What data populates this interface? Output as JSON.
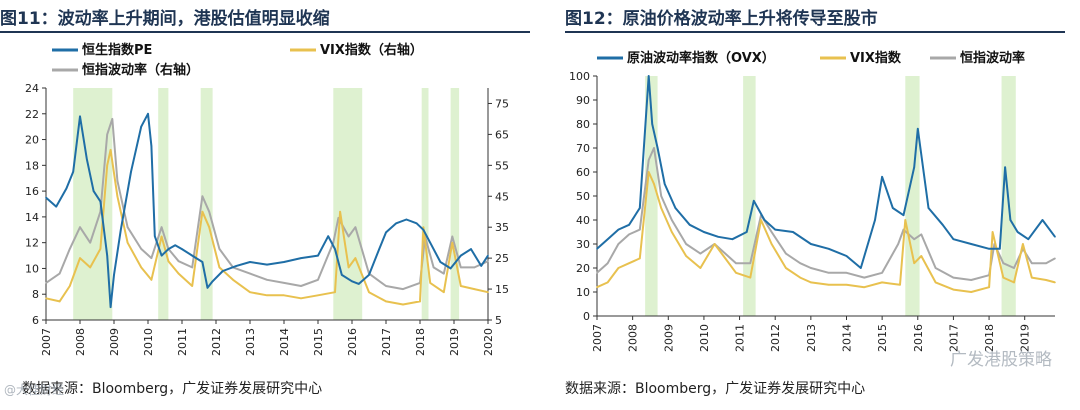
{
  "left": {
    "title": "图11：波动率上升期间，港股估值明显收缩",
    "source": "数据来源：Bloomberg，广发证券发展研究中心",
    "chart_data": {
      "type": "line",
      "title": "图11：波动率上升期间，港股估值明显收缩",
      "x_tick_labels": [
        "2007",
        "2008",
        "2009",
        "2010",
        "2011",
        "2012",
        "2013",
        "2014",
        "2015",
        "2016",
        "2017",
        "2018",
        "2019",
        "2020"
      ],
      "x_range": [
        2007,
        2020
      ],
      "y_left": {
        "range": [
          6,
          24
        ],
        "ticks": [
          6,
          8,
          10,
          12,
          14,
          16,
          18,
          20,
          22,
          24
        ],
        "label": "恒生指数PE"
      },
      "y_right": {
        "range": [
          5,
          80
        ],
        "ticks": [
          5,
          15,
          25,
          35,
          45,
          55,
          65,
          75
        ],
        "label": "VIX / 恒指波动率"
      },
      "shaded_periods": [
        [
          2007.8,
          2008.95
        ],
        [
          2010.3,
          2010.6
        ],
        [
          2011.55,
          2011.9
        ],
        [
          2015.45,
          2016.3
        ],
        [
          2018.05,
          2018.25
        ],
        [
          2018.9,
          2019.15
        ]
      ],
      "series": [
        {
          "name": "恒生指数PE",
          "axis": "left",
          "color": "#1f6ea6",
          "x": [
            2007.0,
            2007.3,
            2007.6,
            2007.8,
            2008.0,
            2008.2,
            2008.4,
            2008.6,
            2008.8,
            2008.9,
            2009.0,
            2009.2,
            2009.5,
            2009.8,
            2010.0,
            2010.1,
            2010.2,
            2010.4,
            2010.6,
            2010.8,
            2011.0,
            2011.3,
            2011.6,
            2011.75,
            2011.9,
            2012.2,
            2012.6,
            2013.0,
            2013.5,
            2014.0,
            2014.5,
            2015.0,
            2015.3,
            2015.5,
            2015.7,
            2016.0,
            2016.2,
            2016.5,
            2016.8,
            2017.0,
            2017.3,
            2017.6,
            2017.9,
            2018.1,
            2018.3,
            2018.6,
            2018.9,
            2019.2,
            2019.5,
            2019.8,
            2020.0
          ],
          "y": [
            15.5,
            14.8,
            16.2,
            17.5,
            21.8,
            18.5,
            16.0,
            15.2,
            11.0,
            7.0,
            9.5,
            13.0,
            17.5,
            21.0,
            22.0,
            19.5,
            12.5,
            11.0,
            11.5,
            11.8,
            11.5,
            11.0,
            10.5,
            8.5,
            9.0,
            9.8,
            10.2,
            10.5,
            10.3,
            10.5,
            10.8,
            11.0,
            12.5,
            11.5,
            9.5,
            9.0,
            8.8,
            9.5,
            11.5,
            12.8,
            13.5,
            13.8,
            13.5,
            13.0,
            12.0,
            10.5,
            10.0,
            11.0,
            11.5,
            10.2,
            11.0
          ]
        },
        {
          "name": "VIX指数（右轴）",
          "axis": "right",
          "color": "#e8c14f",
          "x": [
            2007.0,
            2007.4,
            2007.7,
            2008.0,
            2008.3,
            2008.6,
            2008.8,
            2008.9,
            2009.1,
            2009.4,
            2009.8,
            2010.1,
            2010.4,
            2010.6,
            2010.9,
            2011.3,
            2011.6,
            2011.8,
            2012.1,
            2012.5,
            2013.0,
            2013.5,
            2014.0,
            2014.5,
            2015.0,
            2015.5,
            2015.65,
            2015.9,
            2016.1,
            2016.5,
            2017.0,
            2017.5,
            2018.0,
            2018.1,
            2018.3,
            2018.7,
            2018.95,
            2019.2,
            2019.6,
            2020.0
          ],
          "y": [
            12,
            11,
            16,
            25,
            22,
            28,
            55,
            60,
            45,
            30,
            22,
            18,
            32,
            24,
            20,
            16,
            40,
            35,
            22,
            18,
            14,
            13,
            13,
            12,
            13,
            14,
            40,
            22,
            25,
            14,
            11,
            10,
            11,
            35,
            17,
            14,
            30,
            16,
            15,
            14
          ]
        },
        {
          "name": "恒指波动率（右轴）",
          "axis": "right",
          "color": "#a8a8a8",
          "x": [
            2007.0,
            2007.4,
            2007.7,
            2008.0,
            2008.3,
            2008.6,
            2008.8,
            2008.95,
            2009.1,
            2009.4,
            2009.8,
            2010.1,
            2010.4,
            2010.6,
            2010.9,
            2011.3,
            2011.6,
            2011.8,
            2012.1,
            2012.5,
            2013.0,
            2013.5,
            2014.0,
            2014.5,
            2015.0,
            2015.45,
            2015.6,
            2015.9,
            2016.1,
            2016.5,
            2017.0,
            2017.5,
            2018.0,
            2018.15,
            2018.4,
            2018.7,
            2018.95,
            2019.2,
            2019.6,
            2020.0
          ],
          "y": [
            17,
            20,
            28,
            35,
            30,
            40,
            65,
            70,
            50,
            35,
            28,
            25,
            35,
            28,
            24,
            22,
            45,
            40,
            28,
            22,
            20,
            18,
            17,
            16,
            18,
            30,
            38,
            32,
            35,
            20,
            16,
            15,
            17,
            32,
            22,
            20,
            32,
            22,
            22,
            24
          ]
        }
      ]
    },
    "legend": [
      "恒生指数PE",
      "VIX指数（右轴）",
      "恒指波动率（右轴）"
    ]
  },
  "right": {
    "title": "图12：原油价格波动率上升将传导至股市",
    "source": "数据来源：Bloomberg，广发证券发展研究中心",
    "chart_data": {
      "type": "line",
      "title": "图12：原油价格波动率上升将传导至股市",
      "x_tick_labels": [
        "2007",
        "2008",
        "2009",
        "2010",
        "2011",
        "2012",
        "2013",
        "2014",
        "2015",
        "2016",
        "2017",
        "2018",
        "2019"
      ],
      "x_range": [
        2007,
        2019.85
      ],
      "y_left": {
        "range": [
          0,
          100
        ],
        "ticks": [
          0,
          10,
          20,
          30,
          40,
          50,
          60,
          70,
          80,
          90,
          100
        ]
      },
      "shaded_periods": [
        [
          2008.35,
          2008.7
        ],
        [
          2011.1,
          2011.45
        ],
        [
          2015.65,
          2016.05
        ],
        [
          2018.35,
          2018.75
        ]
      ],
      "series": [
        {
          "name": "原油波动率指数（OVX）",
          "color": "#1f6ea6",
          "x": [
            2007.0,
            2007.3,
            2007.6,
            2007.9,
            2008.2,
            2008.45,
            2008.55,
            2008.7,
            2008.9,
            2009.2,
            2009.6,
            2010.0,
            2010.4,
            2010.8,
            2011.2,
            2011.4,
            2011.7,
            2012.0,
            2012.5,
            2013.0,
            2013.5,
            2014.0,
            2014.4,
            2014.8,
            2015.0,
            2015.3,
            2015.6,
            2015.9,
            2016.0,
            2016.3,
            2016.7,
            2017.0,
            2017.5,
            2018.0,
            2018.3,
            2018.45,
            2018.6,
            2018.8,
            2019.1,
            2019.5,
            2019.85
          ],
          "y": [
            28,
            32,
            36,
            38,
            45,
            100,
            80,
            70,
            55,
            45,
            38,
            35,
            33,
            32,
            35,
            48,
            40,
            36,
            35,
            30,
            28,
            25,
            20,
            40,
            58,
            45,
            42,
            62,
            78,
            45,
            38,
            32,
            30,
            28,
            28,
            62,
            40,
            35,
            32,
            40,
            33
          ]
        },
        {
          "name": "VIX指数",
          "color": "#e8c14f",
          "x": [
            2007.0,
            2007.3,
            2007.6,
            2007.9,
            2008.2,
            2008.45,
            2008.6,
            2008.8,
            2009.1,
            2009.5,
            2009.9,
            2010.3,
            2010.6,
            2010.9,
            2011.3,
            2011.6,
            2011.9,
            2012.3,
            2012.7,
            2013.0,
            2013.5,
            2014.0,
            2014.5,
            2015.0,
            2015.5,
            2015.65,
            2015.9,
            2016.1,
            2016.5,
            2017.0,
            2017.5,
            2018.0,
            2018.1,
            2018.4,
            2018.7,
            2018.95,
            2019.2,
            2019.6,
            2019.85
          ],
          "y": [
            12,
            14,
            20,
            22,
            24,
            60,
            55,
            45,
            35,
            25,
            20,
            30,
            24,
            18,
            16,
            40,
            30,
            20,
            16,
            14,
            13,
            13,
            12,
            14,
            13,
            40,
            22,
            25,
            14,
            11,
            10,
            12,
            35,
            16,
            14,
            30,
            16,
            15,
            14
          ]
        },
        {
          "name": "恒指波动率",
          "color": "#a8a8a8",
          "x": [
            2007.0,
            2007.3,
            2007.6,
            2007.9,
            2008.2,
            2008.45,
            2008.6,
            2008.8,
            2009.1,
            2009.5,
            2009.9,
            2010.3,
            2010.6,
            2010.9,
            2011.3,
            2011.6,
            2011.9,
            2012.3,
            2012.7,
            2013.0,
            2013.5,
            2014.0,
            2014.5,
            2015.0,
            2015.45,
            2015.6,
            2015.9,
            2016.1,
            2016.5,
            2017.0,
            2017.5,
            2018.0,
            2018.15,
            2018.4,
            2018.7,
            2018.95,
            2019.2,
            2019.6,
            2019.85
          ],
          "y": [
            18,
            22,
            30,
            34,
            36,
            65,
            70,
            50,
            40,
            30,
            26,
            30,
            26,
            22,
            22,
            42,
            35,
            26,
            22,
            20,
            18,
            18,
            16,
            18,
            30,
            36,
            32,
            34,
            20,
            16,
            15,
            17,
            30,
            22,
            20,
            28,
            22,
            22,
            24
          ]
        }
      ]
    },
    "legend": [
      "原油波动率指数（OVX）",
      "VIX指数",
      "恒指波动率"
    ]
  },
  "watermark": "广发港股策略",
  "watermark_left": "@大佳财经"
}
